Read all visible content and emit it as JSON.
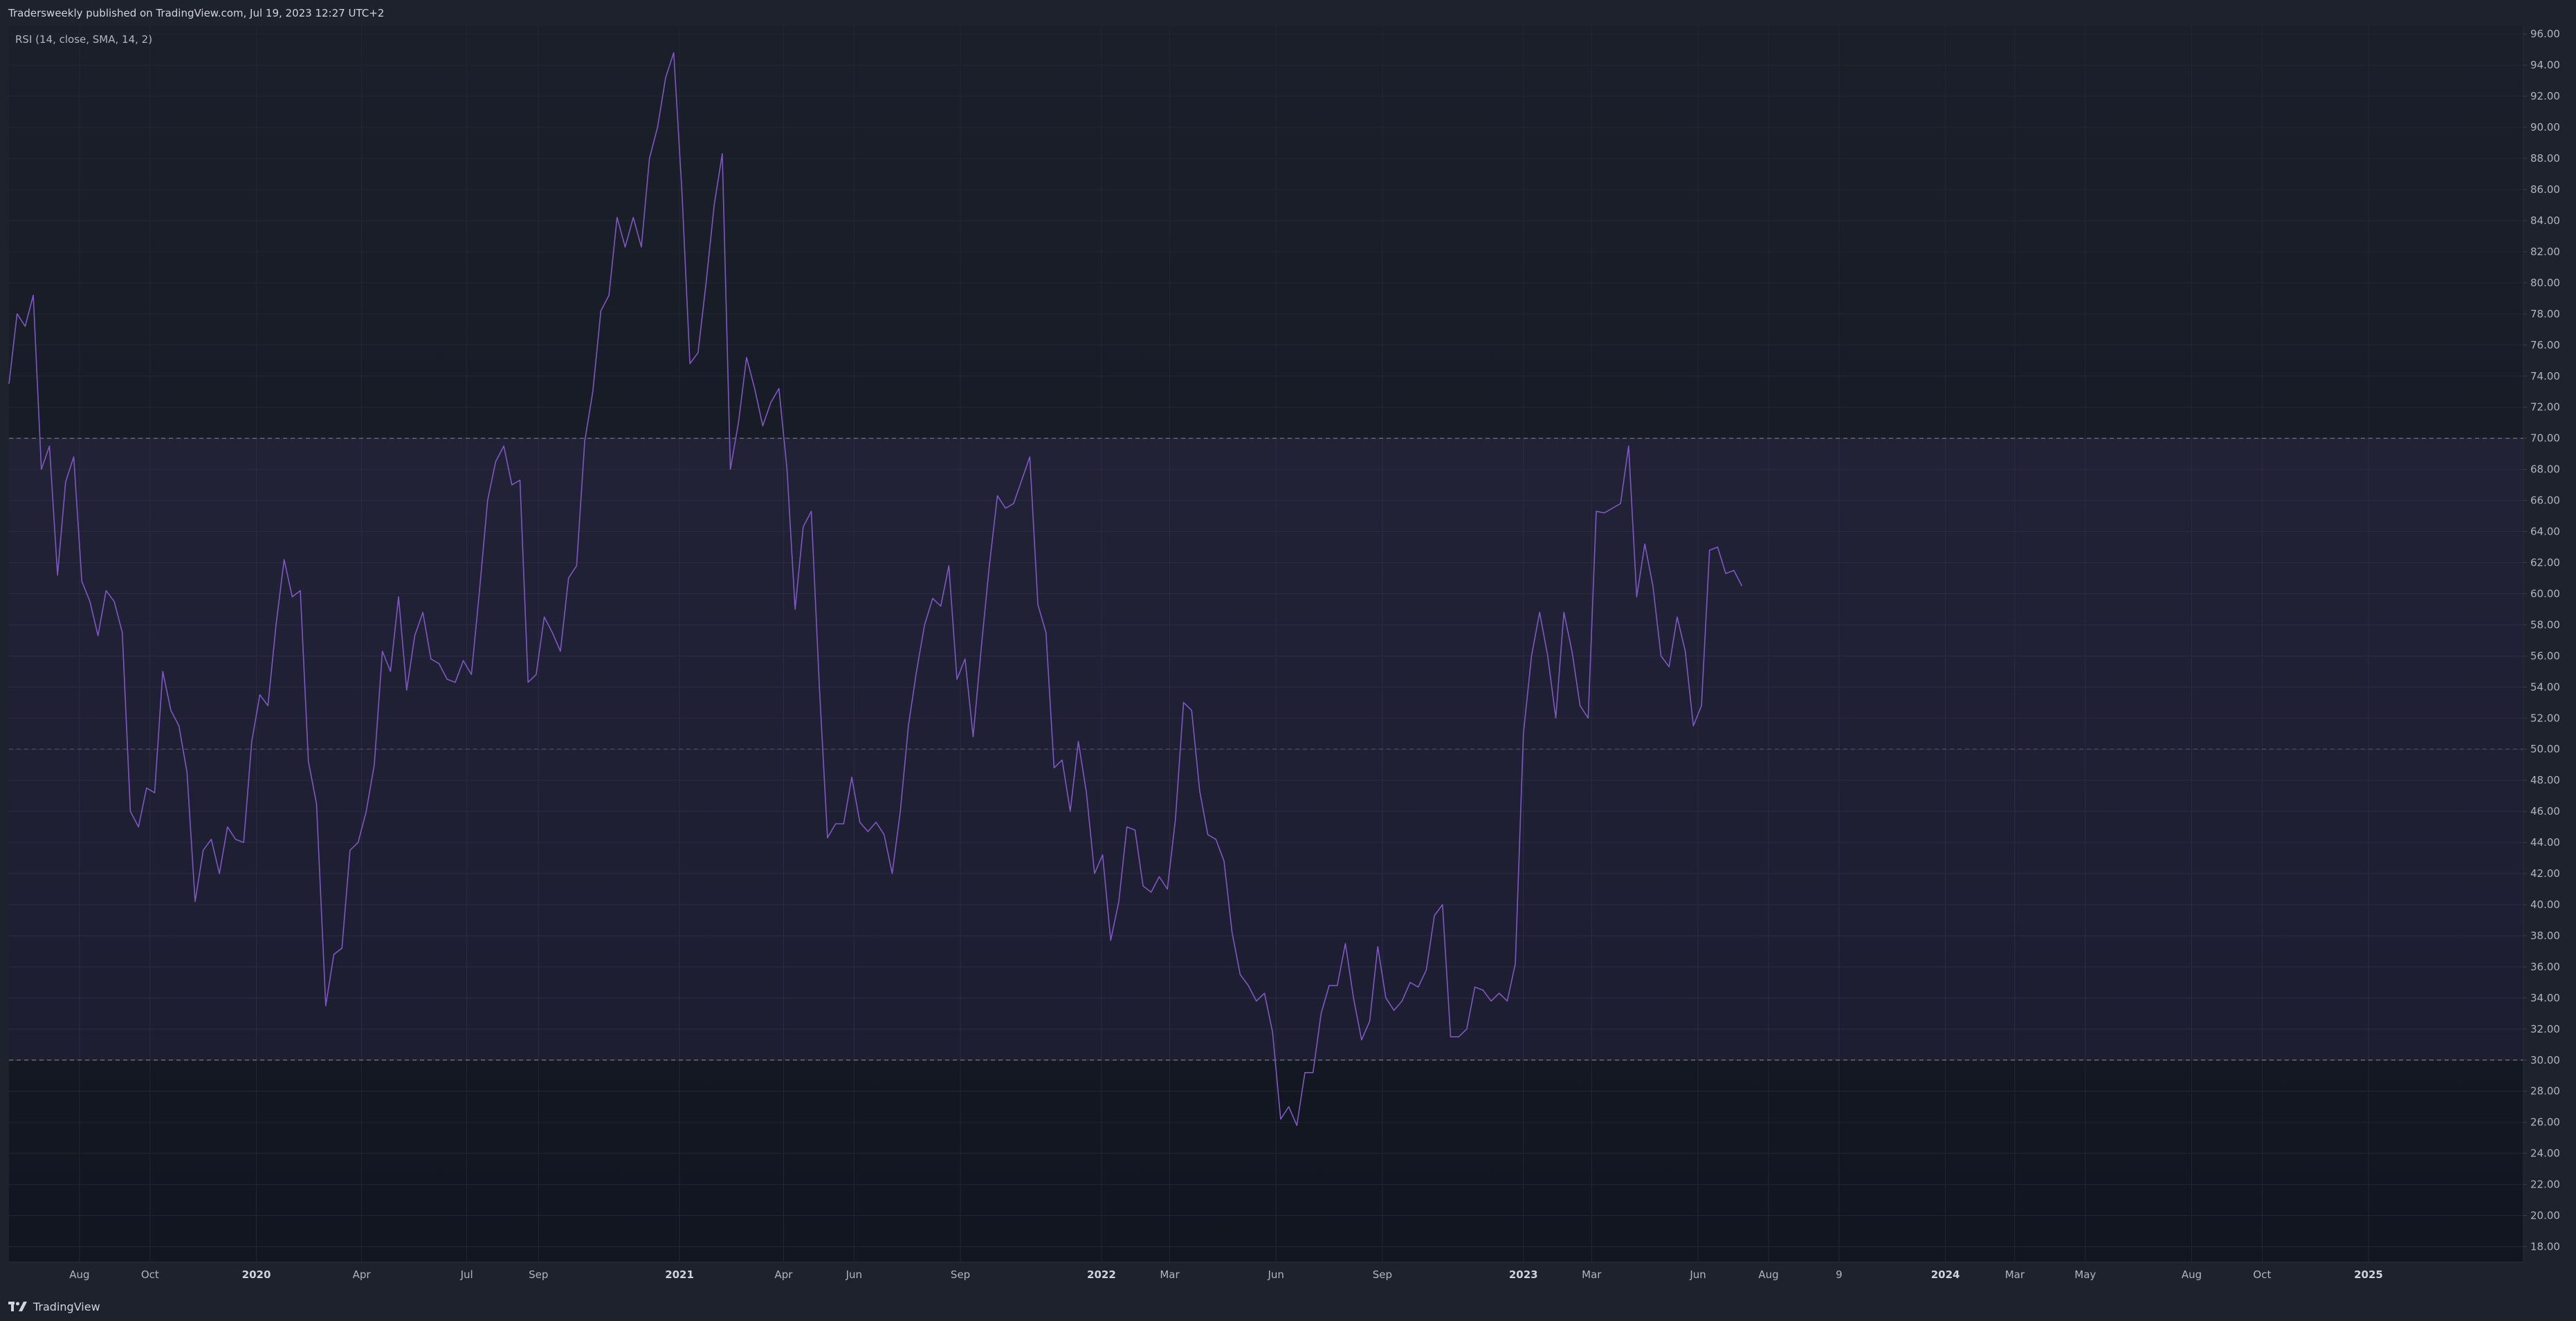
{
  "header": {
    "published_text": "Tradersweekly published on TradingView.com, Jul 19, 2023 12:27 UTC+2"
  },
  "footer": {
    "brand_name": "TradingView",
    "brand_icon": "tradingview-logo-icon"
  },
  "colors": {
    "background": "#131722",
    "panel": "#1e222d",
    "rsi_line": "#7e57c2",
    "band_fill": "#7e57c2",
    "grid": "#232733",
    "text": "#b2b5be"
  },
  "chart_data": {
    "type": "line",
    "indicator_label": "RSI (14, close, SMA, 14, 2)",
    "title": "",
    "xlabel": "",
    "ylabel": "",
    "ylim": [
      17,
      96.5
    ],
    "xlim": [
      "2019-06-01",
      "2025-05-15"
    ],
    "grid": true,
    "y_ticks": [
      "18.00",
      "20.00",
      "22.00",
      "24.00",
      "26.00",
      "28.00",
      "30.00",
      "32.00",
      "34.00",
      "36.00",
      "38.00",
      "40.00",
      "42.00",
      "44.00",
      "46.00",
      "48.00",
      "50.00",
      "52.00",
      "54.00",
      "56.00",
      "58.00",
      "60.00",
      "62.00",
      "64.00",
      "66.00",
      "68.00",
      "70.00",
      "72.00",
      "74.00",
      "76.00",
      "78.00",
      "80.00",
      "82.00",
      "84.00",
      "86.00",
      "88.00",
      "90.00",
      "92.00",
      "94.00",
      "96.00"
    ],
    "x_ticks": [
      {
        "label": "Aug",
        "date": "2019-08-01",
        "bold": false
      },
      {
        "label": "Oct",
        "date": "2019-10-01",
        "bold": false
      },
      {
        "label": "2020",
        "date": "2020-01-01",
        "bold": true
      },
      {
        "label": "Apr",
        "date": "2020-04-01",
        "bold": false
      },
      {
        "label": "Jul",
        "date": "2020-07-01",
        "bold": false
      },
      {
        "label": "Sep",
        "date": "2020-09-01",
        "bold": false
      },
      {
        "label": "2021",
        "date": "2021-01-01",
        "bold": true
      },
      {
        "label": "Apr",
        "date": "2021-04-01",
        "bold": false
      },
      {
        "label": "Jun",
        "date": "2021-06-01",
        "bold": false
      },
      {
        "label": "Sep",
        "date": "2021-09-01",
        "bold": false
      },
      {
        "label": "2022",
        "date": "2022-01-01",
        "bold": true
      },
      {
        "label": "Mar",
        "date": "2022-03-01",
        "bold": false
      },
      {
        "label": "Jun",
        "date": "2022-06-01",
        "bold": false
      },
      {
        "label": "Sep",
        "date": "2022-09-01",
        "bold": false
      },
      {
        "label": "2023",
        "date": "2023-01-01",
        "bold": true
      },
      {
        "label": "Mar",
        "date": "2023-03-01",
        "bold": false
      },
      {
        "label": "Jun",
        "date": "2023-06-01",
        "bold": false
      },
      {
        "label": "Aug",
        "date": "2023-08-01",
        "bold": false
      },
      {
        "label": "9",
        "date": "2023-10-01",
        "bold": false
      },
      {
        "label": "2024",
        "date": "2024-01-01",
        "bold": true
      },
      {
        "label": "Mar",
        "date": "2024-03-01",
        "bold": false
      },
      {
        "label": "May",
        "date": "2024-05-01",
        "bold": false
      },
      {
        "label": "Aug",
        "date": "2024-08-01",
        "bold": false
      },
      {
        "label": "Oct",
        "date": "2024-10-01",
        "bold": false
      },
      {
        "label": "2025",
        "date": "2025-01-01",
        "bold": true
      }
    ],
    "bands": {
      "upper": 70,
      "middle": 50,
      "lower": 30
    },
    "series": [
      {
        "points": [
          [
            "2019-06-01",
            73.5
          ],
          [
            "2019-06-08",
            78.0
          ],
          [
            "2019-06-15",
            77.2
          ],
          [
            "2019-06-22",
            79.2
          ],
          [
            "2019-06-29",
            68.0
          ],
          [
            "2019-07-06",
            69.5
          ],
          [
            "2019-07-13",
            61.2
          ],
          [
            "2019-07-20",
            67.2
          ],
          [
            "2019-07-27",
            68.8
          ],
          [
            "2019-08-03",
            60.8
          ],
          [
            "2019-08-10",
            59.5
          ],
          [
            "2019-08-17",
            57.3
          ],
          [
            "2019-08-24",
            60.2
          ],
          [
            "2019-08-31",
            59.5
          ],
          [
            "2019-09-07",
            57.5
          ],
          [
            "2019-09-14",
            46.0
          ],
          [
            "2019-09-21",
            45.0
          ],
          [
            "2019-09-28",
            47.5
          ],
          [
            "2019-10-05",
            47.2
          ],
          [
            "2019-10-12",
            55.0
          ],
          [
            "2019-10-19",
            52.5
          ],
          [
            "2019-10-26",
            51.5
          ],
          [
            "2019-11-02",
            48.5
          ],
          [
            "2019-11-09",
            40.2
          ],
          [
            "2019-11-16",
            43.5
          ],
          [
            "2019-11-23",
            44.2
          ],
          [
            "2019-11-30",
            42.0
          ],
          [
            "2019-12-07",
            45.0
          ],
          [
            "2019-12-14",
            44.2
          ],
          [
            "2019-12-21",
            44.0
          ],
          [
            "2019-12-28",
            50.5
          ],
          [
            "2020-01-04",
            53.5
          ],
          [
            "2020-01-11",
            52.8
          ],
          [
            "2020-01-18",
            58.0
          ],
          [
            "2020-01-25",
            62.2
          ],
          [
            "2020-02-01",
            59.8
          ],
          [
            "2020-02-08",
            60.2
          ],
          [
            "2020-02-15",
            49.2
          ],
          [
            "2020-02-22",
            46.5
          ],
          [
            "2020-03-01",
            33.5
          ],
          [
            "2020-03-08",
            36.8
          ],
          [
            "2020-03-15",
            37.2
          ],
          [
            "2020-03-22",
            43.5
          ],
          [
            "2020-03-29",
            44.0
          ],
          [
            "2020-04-05",
            46.0
          ],
          [
            "2020-04-12",
            49.0
          ],
          [
            "2020-04-19",
            56.3
          ],
          [
            "2020-04-26",
            55.0
          ],
          [
            "2020-05-03",
            59.8
          ],
          [
            "2020-05-10",
            53.8
          ],
          [
            "2020-05-17",
            57.3
          ],
          [
            "2020-05-24",
            58.8
          ],
          [
            "2020-05-31",
            55.8
          ],
          [
            "2020-06-07",
            55.5
          ],
          [
            "2020-06-14",
            54.5
          ],
          [
            "2020-06-21",
            54.3
          ],
          [
            "2020-06-28",
            55.7
          ],
          [
            "2020-07-05",
            54.8
          ],
          [
            "2020-07-12",
            60.2
          ],
          [
            "2020-07-19",
            66.0
          ],
          [
            "2020-07-26",
            68.5
          ],
          [
            "2020-08-02",
            69.5
          ],
          [
            "2020-08-09",
            67.0
          ],
          [
            "2020-08-16",
            67.3
          ],
          [
            "2020-08-23",
            54.3
          ],
          [
            "2020-08-30",
            54.8
          ],
          [
            "2020-09-06",
            58.5
          ],
          [
            "2020-09-13",
            57.5
          ],
          [
            "2020-09-20",
            56.3
          ],
          [
            "2020-09-27",
            61.0
          ],
          [
            "2020-10-04",
            61.8
          ],
          [
            "2020-10-11",
            69.8
          ],
          [
            "2020-10-18",
            73.0
          ],
          [
            "2020-10-25",
            78.2
          ],
          [
            "2020-11-01",
            79.2
          ],
          [
            "2020-11-08",
            84.2
          ],
          [
            "2020-11-15",
            82.3
          ],
          [
            "2020-11-22",
            84.2
          ],
          [
            "2020-11-29",
            82.3
          ],
          [
            "2020-12-06",
            88.0
          ],
          [
            "2020-12-13",
            90.0
          ],
          [
            "2020-12-20",
            93.2
          ],
          [
            "2020-12-27",
            94.8
          ],
          [
            "2021-01-03",
            86.0
          ],
          [
            "2021-01-10",
            74.8
          ],
          [
            "2021-01-17",
            75.5
          ],
          [
            "2021-01-24",
            80.0
          ],
          [
            "2021-01-31",
            85.0
          ],
          [
            "2021-02-07",
            88.3
          ],
          [
            "2021-02-14",
            68.0
          ],
          [
            "2021-02-21",
            71.0
          ],
          [
            "2021-02-28",
            75.2
          ],
          [
            "2021-03-07",
            73.2
          ],
          [
            "2021-03-14",
            70.8
          ],
          [
            "2021-03-21",
            72.3
          ],
          [
            "2021-03-28",
            73.2
          ],
          [
            "2021-04-04",
            68.0
          ],
          [
            "2021-04-11",
            59.0
          ],
          [
            "2021-04-18",
            64.3
          ],
          [
            "2021-04-25",
            65.3
          ],
          [
            "2021-05-02",
            54.0
          ],
          [
            "2021-05-09",
            44.3
          ],
          [
            "2021-05-16",
            45.2
          ],
          [
            "2021-05-23",
            45.2
          ],
          [
            "2021-05-30",
            48.2
          ],
          [
            "2021-06-06",
            45.3
          ],
          [
            "2021-06-13",
            44.7
          ],
          [
            "2021-06-20",
            45.3
          ],
          [
            "2021-06-27",
            44.5
          ],
          [
            "2021-07-04",
            42.0
          ],
          [
            "2021-07-11",
            46.0
          ],
          [
            "2021-07-18",
            51.5
          ],
          [
            "2021-07-25",
            55.0
          ],
          [
            "2021-08-01",
            58.0
          ],
          [
            "2021-08-08",
            59.7
          ],
          [
            "2021-08-15",
            59.2
          ],
          [
            "2021-08-22",
            61.8
          ],
          [
            "2021-08-29",
            54.5
          ],
          [
            "2021-09-05",
            55.8
          ],
          [
            "2021-09-12",
            50.8
          ],
          [
            "2021-09-19",
            56.5
          ],
          [
            "2021-09-26",
            61.8
          ],
          [
            "2021-10-03",
            66.3
          ],
          [
            "2021-10-10",
            65.5
          ],
          [
            "2021-10-17",
            65.8
          ],
          [
            "2021-10-24",
            67.3
          ],
          [
            "2021-10-31",
            68.8
          ],
          [
            "2021-11-07",
            59.3
          ],
          [
            "2021-11-14",
            57.5
          ],
          [
            "2021-11-21",
            48.8
          ],
          [
            "2021-11-28",
            49.3
          ],
          [
            "2021-12-05",
            46.0
          ],
          [
            "2021-12-12",
            50.5
          ],
          [
            "2021-12-19",
            47.2
          ],
          [
            "2021-12-26",
            42.0
          ],
          [
            "2022-01-02",
            43.2
          ],
          [
            "2022-01-09",
            37.7
          ],
          [
            "2022-01-16",
            40.2
          ],
          [
            "2022-01-23",
            45.0
          ],
          [
            "2022-01-30",
            44.8
          ],
          [
            "2022-02-06",
            41.2
          ],
          [
            "2022-02-13",
            40.8
          ],
          [
            "2022-02-20",
            41.8
          ],
          [
            "2022-02-27",
            41.0
          ],
          [
            "2022-03-06",
            45.5
          ],
          [
            "2022-03-13",
            53.0
          ],
          [
            "2022-03-20",
            52.5
          ],
          [
            "2022-03-27",
            47.3
          ],
          [
            "2022-04-03",
            44.5
          ],
          [
            "2022-04-10",
            44.2
          ],
          [
            "2022-04-17",
            42.8
          ],
          [
            "2022-04-24",
            38.2
          ],
          [
            "2022-05-01",
            35.5
          ],
          [
            "2022-05-08",
            34.8
          ],
          [
            "2022-05-15",
            33.8
          ],
          [
            "2022-05-22",
            34.3
          ],
          [
            "2022-05-29",
            31.8
          ],
          [
            "2022-06-05",
            26.2
          ],
          [
            "2022-06-12",
            27.0
          ],
          [
            "2022-06-19",
            25.8
          ],
          [
            "2022-06-26",
            29.2
          ],
          [
            "2022-07-03",
            29.2
          ],
          [
            "2022-07-10",
            33.0
          ],
          [
            "2022-07-17",
            34.8
          ],
          [
            "2022-07-24",
            34.8
          ],
          [
            "2022-07-31",
            37.5
          ],
          [
            "2022-08-07",
            34.0
          ],
          [
            "2022-08-14",
            31.3
          ],
          [
            "2022-08-21",
            32.5
          ],
          [
            "2022-08-28",
            37.3
          ],
          [
            "2022-09-04",
            34.0
          ],
          [
            "2022-09-11",
            33.2
          ],
          [
            "2022-09-18",
            33.8
          ],
          [
            "2022-09-25",
            35.0
          ],
          [
            "2022-10-02",
            34.7
          ],
          [
            "2022-10-09",
            35.8
          ],
          [
            "2022-10-16",
            39.3
          ],
          [
            "2022-10-23",
            40.0
          ],
          [
            "2022-10-30",
            31.5
          ],
          [
            "2022-11-06",
            31.5
          ],
          [
            "2022-11-13",
            32.0
          ],
          [
            "2022-11-20",
            34.7
          ],
          [
            "2022-11-27",
            34.5
          ],
          [
            "2022-12-04",
            33.8
          ],
          [
            "2022-12-11",
            34.3
          ],
          [
            "2022-12-18",
            33.8
          ],
          [
            "2022-12-25",
            36.2
          ],
          [
            "2023-01-01",
            51.0
          ],
          [
            "2023-01-08",
            56.0
          ],
          [
            "2023-01-15",
            58.8
          ],
          [
            "2023-01-22",
            56.0
          ],
          [
            "2023-01-29",
            52.0
          ],
          [
            "2023-02-05",
            58.8
          ],
          [
            "2023-02-12",
            56.3
          ],
          [
            "2023-02-19",
            52.8
          ],
          [
            "2023-02-26",
            52.0
          ],
          [
            "2023-03-05",
            65.3
          ],
          [
            "2023-03-12",
            65.2
          ],
          [
            "2023-03-19",
            65.5
          ],
          [
            "2023-03-26",
            65.8
          ],
          [
            "2023-04-02",
            69.5
          ],
          [
            "2023-04-09",
            59.8
          ],
          [
            "2023-04-16",
            63.2
          ],
          [
            "2023-04-23",
            60.5
          ],
          [
            "2023-04-30",
            56.0
          ],
          [
            "2023-05-07",
            55.3
          ],
          [
            "2023-05-14",
            58.5
          ],
          [
            "2023-05-21",
            56.3
          ],
          [
            "2023-05-28",
            51.5
          ],
          [
            "2023-06-04",
            52.8
          ],
          [
            "2023-06-11",
            62.8
          ],
          [
            "2023-06-18",
            63.0
          ],
          [
            "2023-06-25",
            61.3
          ],
          [
            "2023-07-02",
            61.5
          ],
          [
            "2023-07-09",
            60.5
          ]
        ]
      }
    ]
  }
}
